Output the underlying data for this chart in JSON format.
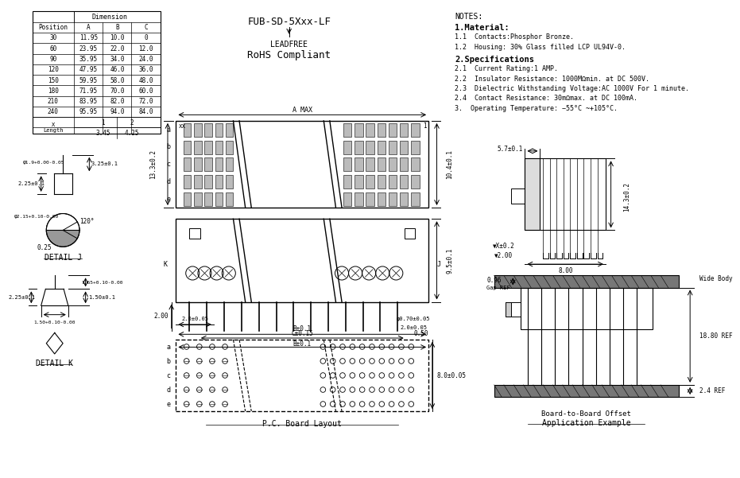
{
  "bg_color": "#ffffff",
  "line_color": "#000000",
  "title_part": "FUB-SD-5Xxx-LF",
  "table_data": {
    "positions": [
      30,
      60,
      90,
      120,
      150,
      180,
      210,
      240
    ],
    "A": [
      11.95,
      23.95,
      35.95,
      47.95,
      59.95,
      71.95,
      83.95,
      95.95
    ],
    "B": [
      10.0,
      22.0,
      34.0,
      46.0,
      58.0,
      70.0,
      82.0,
      94.0
    ],
    "C": [
      0,
      12.0,
      24.0,
      36.0,
      48.0,
      60.0,
      72.0,
      84.0
    ],
    "x_length": {
      "1": 3.45,
      "2": 4.25
    }
  },
  "notes": {
    "header": "NOTES:",
    "material_header": "1.Material:",
    "items": [
      "1.1  Contacts:Phosphor Bronze.",
      "1.2  Housing: 30% Glass filled LCP UL94V-0."
    ],
    "spec_header": "2.Specifications",
    "specs": [
      "2.1  Current Rating:1 AMP.",
      "2.2  Insulator Resistance: 1000MΩmin. at DC 500V.",
      "2.3  Dielectric Withstanding Voltage:AC 1000V For 1 minute.",
      "2.4  Contact Resistance: 30mΩmax. at DC 100mA.",
      "3.  Operating Temperature: −55°C ~+105°C."
    ]
  },
  "dims": {
    "A_MAX": "A MAX",
    "13.3pm0.2": "13.3±0.2",
    "10.4pm0.1": "10.4±0.1",
    "9.5pm0.1": "9.5±0.1",
    "2.00": "2.00",
    "Cpm0.15": "C±0.15",
    "0.50": "0.50",
    "Bpm0.1_top": "B±0.1",
    "Bpm0.1_bot": "B±0.1",
    "2.0pm0.05": "2.0±0.05",
    "phi0.70pm0.05": "φ0.70±0.05",
    "2.0pm0.05b": "2.0±0.05",
    "8.0pm0.05": "8.0±0.05",
    "2.25pm0.1_j": "2.25±0.1",
    "3.25pm0.1": "3.25±0.1",
    "phi1.9": "φ1.9+0.00-0.05",
    "phi2.15": "φ2.15+0.10-0.00",
    "0.25": "0.25",
    "120deg": "120°",
    "detail_j": "DETAIL J",
    "1.65": "1.65+0.10-0.00",
    "1.50pm0.1": "1.50±0.1",
    "2.25pm0.1_k": "2.25±0.1",
    "1.50b": "1.50+0.10-0.00",
    "detail_k": "DETAIL K",
    "pc_board": "P.C. Board Layout",
    "app_ex": "Application Example",
    "leadfree": "LEADFREE",
    "rohs": "RoHS Compliant",
    "5.7pm0.1": "5.7±0.1",
    "14.3pm0.2": "14.3±0.2",
    "Xpm0.2": "▼X±0.2",
    "2.00b": "▼2.00",
    "8.00": "8.00",
    "0.96": "0.96",
    "Gap_REF": "Gap REF",
    "18.80_REF": "18.80 REF",
    "2.4_REF": "2.4 REF",
    "Wide_Body": "Wide Body",
    "btob": "Board-to-Board Offset"
  }
}
